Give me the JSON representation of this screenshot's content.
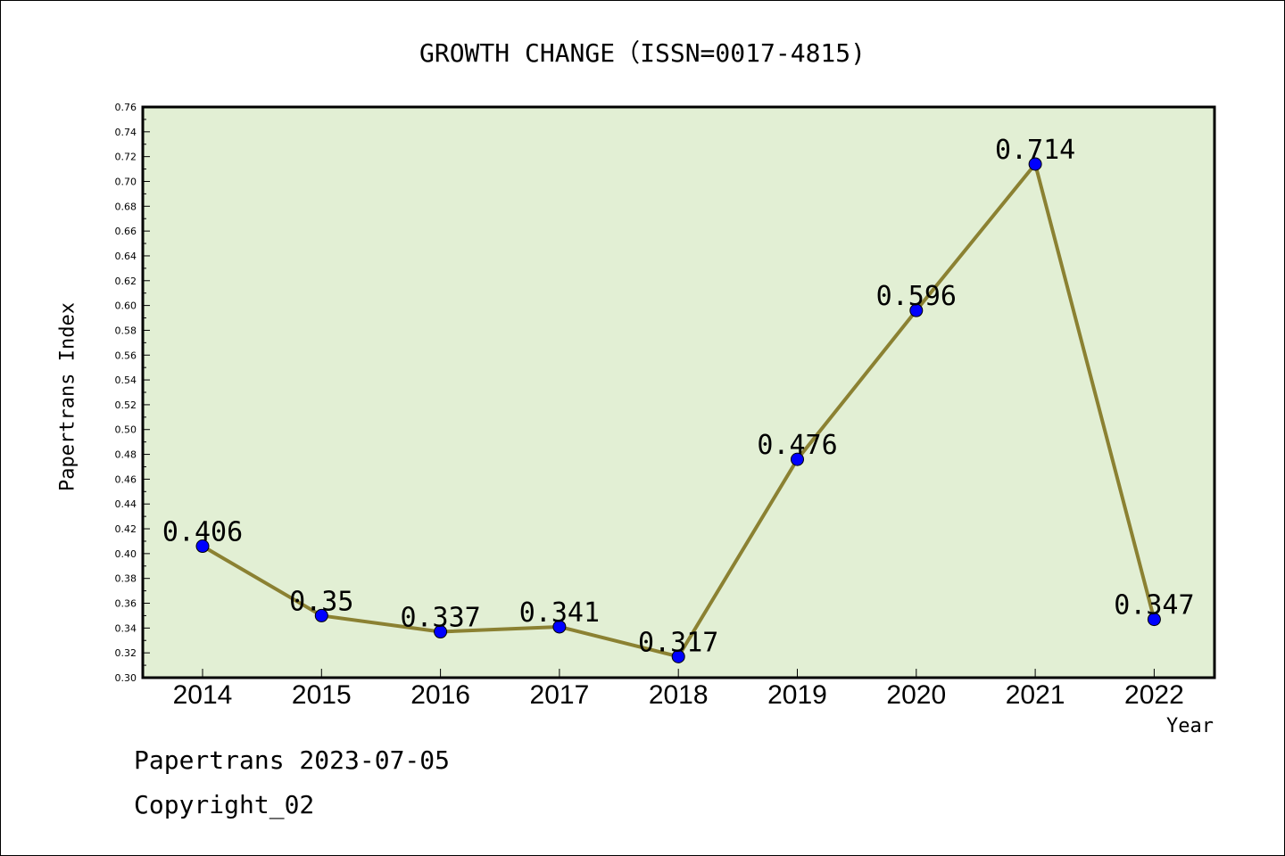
{
  "chart_data": {
    "type": "line",
    "title": "GROWTH CHANGE（ISSN=0017-4815)",
    "xlabel": "Year",
    "ylabel": "Papertrans Index",
    "categories": [
      "2014",
      "2015",
      "2016",
      "2017",
      "2018",
      "2019",
      "2020",
      "2021",
      "2022"
    ],
    "values": [
      0.406,
      0.35,
      0.337,
      0.341,
      0.317,
      0.476,
      0.596,
      0.714,
      0.347
    ],
    "data_labels": [
      "0.406",
      "0.35",
      "0.337",
      "0.341",
      "0.317",
      "0.476",
      "0.596",
      "0.714",
      "0.347"
    ],
    "ylim": [
      0.3,
      0.76
    ],
    "ytick_step": 0.02,
    "grid": false,
    "legend": "none",
    "colors": {
      "plot_background": "#e2efd4",
      "line": "#8b8132",
      "marker": "#0000ff"
    }
  },
  "footer": {
    "line1": "Papertrans 2023-07-05",
    "line2": "Copyright_02"
  }
}
